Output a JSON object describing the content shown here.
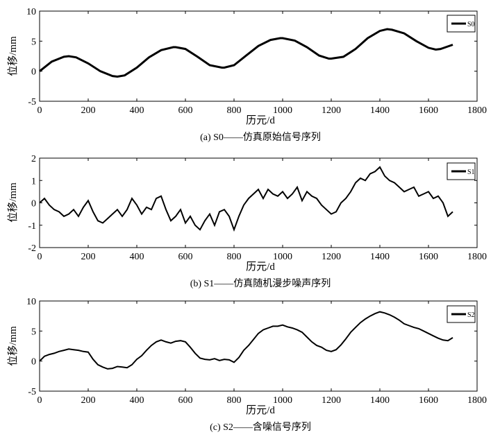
{
  "chart_data": [
    {
      "type": "line",
      "ylabel": "位移/mm",
      "xlabel": "历元/d",
      "caption": "(a) S0——仿真原始信号序列",
      "xlim": [
        0,
        1800
      ],
      "ylim": [
        -5,
        10
      ],
      "xticks": [
        "0",
        "200",
        "400",
        "600",
        "800",
        "1000",
        "1200",
        "1400",
        "1600",
        "1800"
      ],
      "yticks": [
        "-5",
        "0",
        "5",
        "10"
      ],
      "legend": {
        "position": "top-right",
        "entries": [
          "S0"
        ]
      },
      "series": [
        {
          "name": "S0",
          "color": "#000000",
          "x": [
            0,
            50,
            100,
            120,
            150,
            200,
            250,
            300,
            320,
            350,
            400,
            450,
            500,
            550,
            560,
            600,
            650,
            700,
            750,
            760,
            800,
            850,
            900,
            950,
            990,
            1000,
            1050,
            1100,
            1150,
            1190,
            1200,
            1250,
            1300,
            1350,
            1400,
            1430,
            1450,
            1500,
            1550,
            1600,
            1630,
            1650,
            1700
          ],
          "y": [
            0,
            1.6,
            2.4,
            2.5,
            2.3,
            1.3,
            0,
            -0.8,
            -0.9,
            -0.7,
            0.6,
            2.3,
            3.5,
            4.0,
            4.0,
            3.7,
            2.4,
            1.0,
            0.6,
            0.6,
            1.0,
            2.6,
            4.2,
            5.2,
            5.5,
            5.5,
            5.1,
            4.0,
            2.6,
            2.1,
            2.1,
            2.4,
            3.7,
            5.5,
            6.7,
            7.0,
            6.9,
            6.3,
            5.0,
            3.9,
            3.6,
            3.7,
            4.4
          ]
        }
      ]
    },
    {
      "type": "line",
      "ylabel": "位移/mm",
      "xlabel": "历元/d",
      "caption": "(b) S1——仿真随机漫步噪声序列",
      "xlim": [
        0,
        1800
      ],
      "ylim": [
        -2,
        2
      ],
      "xticks": [
        "0",
        "200",
        "400",
        "600",
        "800",
        "1000",
        "1200",
        "1400",
        "1600",
        "1800"
      ],
      "yticks": [
        "-2",
        "-1",
        "0",
        "1",
        "2"
      ],
      "legend": {
        "position": "top-right",
        "entries": [
          "S1"
        ]
      },
      "series": [
        {
          "name": "S1",
          "color": "#000000",
          "x": [
            0,
            20,
            40,
            60,
            80,
            100,
            120,
            140,
            160,
            180,
            200,
            220,
            240,
            260,
            280,
            300,
            320,
            340,
            360,
            380,
            400,
            420,
            440,
            460,
            480,
            500,
            520,
            540,
            560,
            580,
            600,
            620,
            640,
            660,
            680,
            700,
            720,
            740,
            760,
            780,
            800,
            820,
            840,
            860,
            880,
            900,
            920,
            940,
            960,
            980,
            1000,
            1020,
            1040,
            1060,
            1080,
            1100,
            1120,
            1140,
            1160,
            1180,
            1200,
            1220,
            1240,
            1260,
            1280,
            1300,
            1320,
            1340,
            1360,
            1380,
            1400,
            1420,
            1440,
            1460,
            1480,
            1500,
            1520,
            1540,
            1560,
            1580,
            1600,
            1620,
            1640,
            1660,
            1680,
            1700
          ],
          "y": [
            0,
            0.2,
            -0.1,
            -0.3,
            -0.4,
            -0.6,
            -0.5,
            -0.3,
            -0.6,
            -0.2,
            0.1,
            -0.4,
            -0.8,
            -0.9,
            -0.7,
            -0.5,
            -0.3,
            -0.6,
            -0.3,
            0.2,
            -0.1,
            -0.5,
            -0.2,
            -0.3,
            0.2,
            0.3,
            -0.3,
            -0.8,
            -0.6,
            -0.3,
            -0.9,
            -0.6,
            -1.0,
            -1.2,
            -0.8,
            -0.5,
            -1.0,
            -0.4,
            -0.3,
            -0.6,
            -1.2,
            -0.6,
            -0.1,
            0.2,
            0.4,
            0.6,
            0.2,
            0.6,
            0.4,
            0.3,
            0.5,
            0.2,
            0.4,
            0.7,
            0.1,
            0.5,
            0.3,
            0.2,
            -0.1,
            -0.3,
            -0.5,
            -0.4,
            0.0,
            0.2,
            0.5,
            0.9,
            1.1,
            1.0,
            1.3,
            1.4,
            1.6,
            1.2,
            1.0,
            0.9,
            0.7,
            0.5,
            0.6,
            0.7,
            0.3,
            0.4,
            0.5,
            0.2,
            0.3,
            0.0,
            -0.6,
            -0.4
          ]
        }
      ]
    },
    {
      "type": "line",
      "ylabel": "位移/mm",
      "xlabel": "历元/d",
      "caption": "(c) S2——含噪信号序列",
      "xlim": [
        0,
        1800
      ],
      "ylim": [
        -5,
        10
      ],
      "xticks": [
        "0",
        "200",
        "400",
        "600",
        "800",
        "1000",
        "1200",
        "1400",
        "1600",
        "1800"
      ],
      "yticks": [
        "-5",
        "0",
        "5",
        "10"
      ],
      "legend": {
        "position": "top-right",
        "entries": [
          "S2"
        ]
      },
      "series": [
        {
          "name": "S2",
          "color": "#000000",
          "x": [
            0,
            20,
            40,
            60,
            80,
            100,
            120,
            140,
            160,
            180,
            200,
            220,
            240,
            260,
            280,
            300,
            320,
            340,
            360,
            380,
            400,
            420,
            440,
            460,
            480,
            500,
            520,
            540,
            560,
            580,
            600,
            620,
            640,
            660,
            680,
            700,
            720,
            740,
            760,
            780,
            800,
            820,
            840,
            860,
            880,
            900,
            920,
            940,
            960,
            980,
            1000,
            1020,
            1040,
            1060,
            1080,
            1100,
            1120,
            1140,
            1160,
            1180,
            1200,
            1220,
            1240,
            1260,
            1280,
            1300,
            1320,
            1340,
            1360,
            1380,
            1400,
            1420,
            1440,
            1460,
            1480,
            1500,
            1520,
            1540,
            1560,
            1580,
            1600,
            1620,
            1640,
            1660,
            1680,
            1700
          ],
          "y": [
            0,
            0.8,
            1.1,
            1.3,
            1.6,
            1.8,
            2.0,
            1.9,
            1.8,
            1.6,
            1.5,
            0.3,
            -0.6,
            -1.0,
            -1.3,
            -1.2,
            -0.9,
            -1.0,
            -1.1,
            -0.6,
            0.3,
            0.9,
            1.8,
            2.6,
            3.2,
            3.5,
            3.2,
            3.0,
            3.3,
            3.4,
            3.2,
            2.3,
            1.3,
            0.5,
            0.3,
            0.2,
            0.4,
            0.1,
            0.3,
            0.2,
            -0.2,
            0.6,
            1.8,
            2.6,
            3.6,
            4.6,
            5.2,
            5.5,
            5.8,
            5.8,
            6.0,
            5.7,
            5.5,
            5.2,
            4.8,
            4.0,
            3.2,
            2.6,
            2.3,
            1.8,
            1.6,
            1.9,
            2.7,
            3.7,
            4.8,
            5.6,
            6.4,
            7.0,
            7.5,
            7.9,
            8.2,
            8.0,
            7.7,
            7.3,
            6.8,
            6.2,
            5.9,
            5.6,
            5.4,
            5.0,
            4.6,
            4.2,
            3.8,
            3.5,
            3.4,
            3.9
          ]
        }
      ]
    }
  ]
}
